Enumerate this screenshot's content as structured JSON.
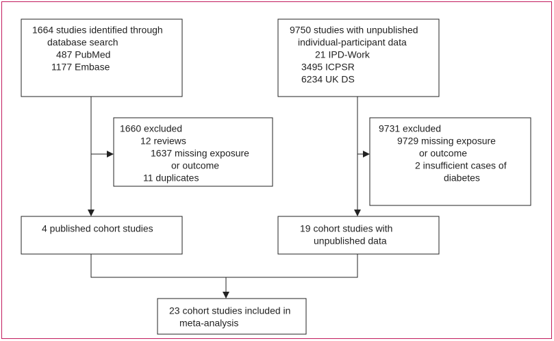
{
  "nodes": [
    {
      "lines": [
        "1664 studies identified through",
        "database search",
        "487 PubMed",
        "1177 Embase"
      ]
    },
    {
      "lines": [
        "9750 studies with unpublished",
        "individual-participant data",
        "21 IPD-Work",
        "3495 ICPSR",
        "6234 UK DS"
      ]
    },
    {
      "lines": [
        "1660 excluded",
        "12 reviews",
        "1637 missing exposure",
        "or outcome",
        "11 duplicates"
      ]
    },
    {
      "lines": [
        "9731 excluded",
        "9729 missing exposure",
        "or outcome",
        "2 insufficient cases of",
        "diabetes"
      ]
    },
    {
      "lines": [
        "4 published cohort studies"
      ]
    },
    {
      "lines": [
        "19 cohort studies with",
        "unpublished data"
      ]
    },
    {
      "lines": [
        "23 cohort studies included in",
        "meta-analysis"
      ]
    }
  ]
}
